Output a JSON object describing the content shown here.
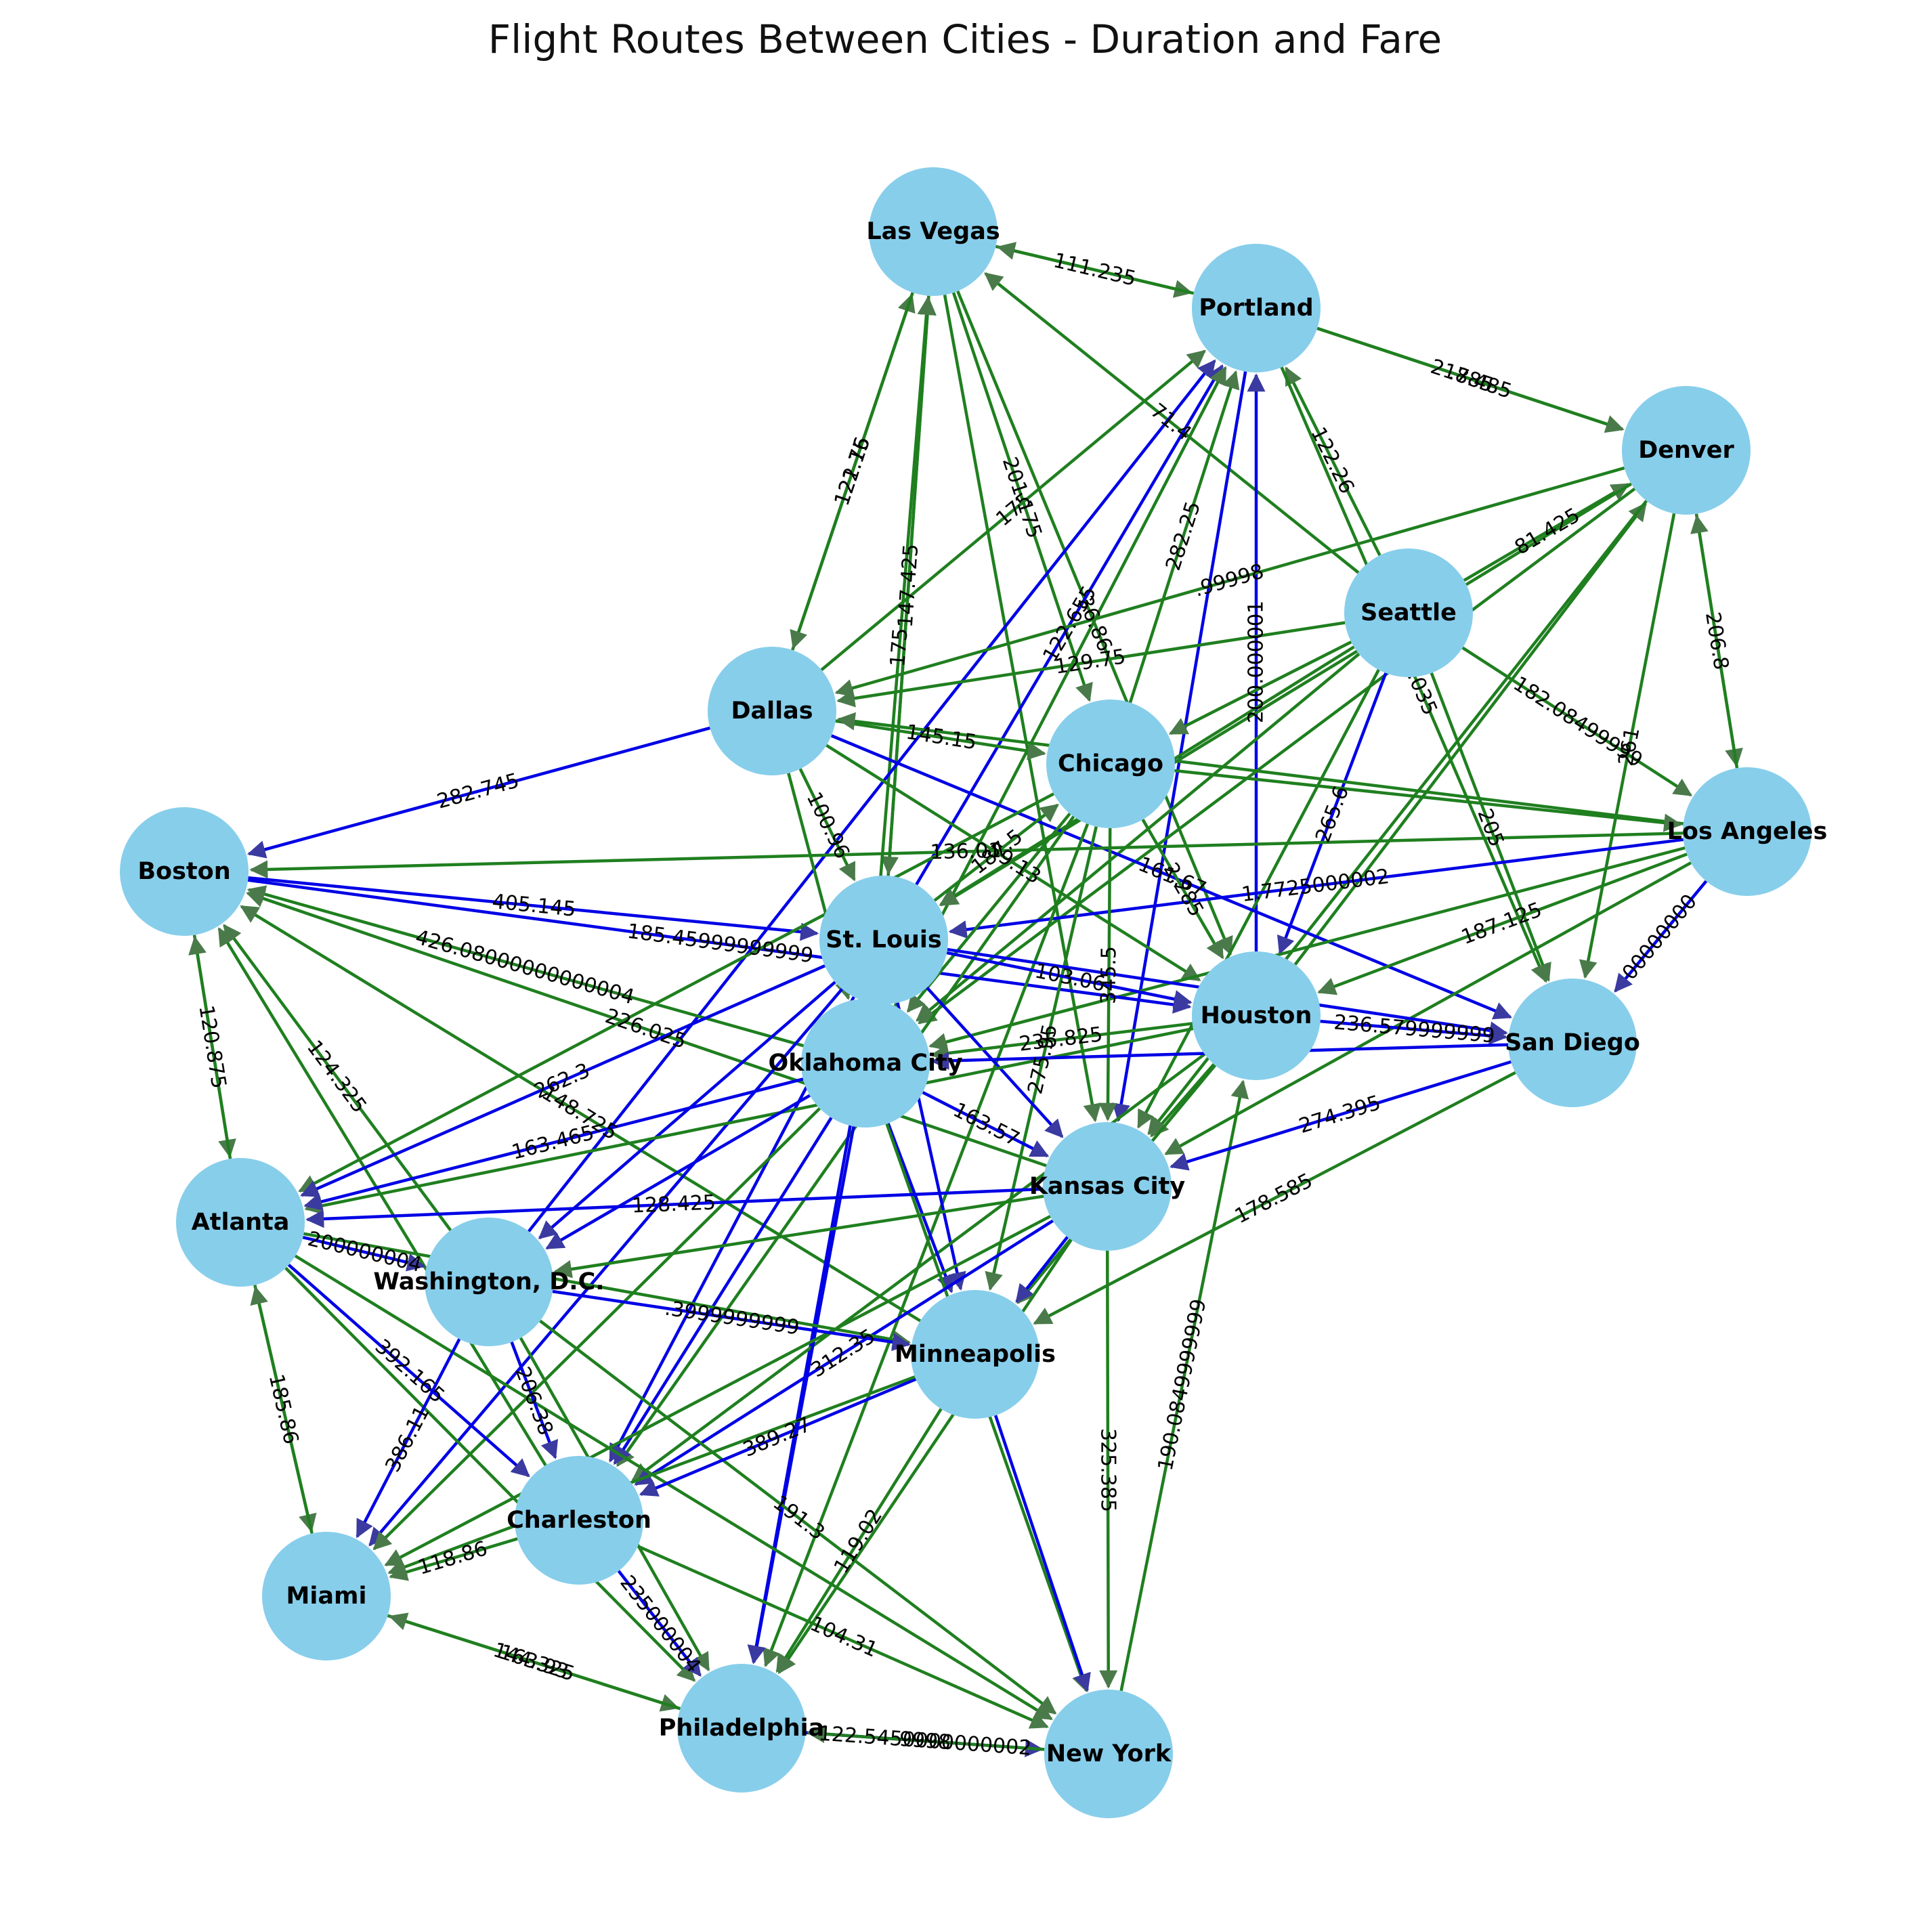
{
  "title": "Flight Routes Between Cities - Duration and Fare",
  "colors": {
    "node_fill": "#87ceeb",
    "edge_green": "#1f7f1f",
    "edge_blue": "#0000e6",
    "background": "#ffffff"
  },
  "nodes": [
    {
      "id": "lv",
      "name": "Las Vegas"
    },
    {
      "id": "por",
      "name": "Portland"
    },
    {
      "id": "den",
      "name": "Denver"
    },
    {
      "id": "sea",
      "name": "Seattle"
    },
    {
      "id": "dal",
      "name": "Dallas"
    },
    {
      "id": "chi",
      "name": "Chicago"
    },
    {
      "id": "la",
      "name": "Los Angeles"
    },
    {
      "id": "bos",
      "name": "Boston"
    },
    {
      "id": "stl",
      "name": "St. Louis"
    },
    {
      "id": "hou",
      "name": "Houston"
    },
    {
      "id": "sd",
      "name": "San Diego"
    },
    {
      "id": "okc",
      "name": "Oklahoma City"
    },
    {
      "id": "kc",
      "name": "Kansas City"
    },
    {
      "id": "atl",
      "name": "Atlanta"
    },
    {
      "id": "dc",
      "name": "Washington, D.C."
    },
    {
      "id": "min",
      "name": "Minneapolis"
    },
    {
      "id": "cha",
      "name": "Charleston"
    },
    {
      "id": "mia",
      "name": "Miami"
    },
    {
      "id": "phi",
      "name": "Philadelphia"
    },
    {
      "id": "ny",
      "name": "New York"
    }
  ],
  "edges": [
    {
      "from": "lv",
      "to": "por",
      "color": "green",
      "label": "111.235"
    },
    {
      "from": "por",
      "to": "lv",
      "color": "green",
      "label": ""
    },
    {
      "from": "por",
      "to": "den",
      "color": "green",
      "label": "218.485"
    },
    {
      "from": "por",
      "to": "den",
      "color": "green",
      "label": ".785"
    },
    {
      "from": "sea",
      "to": "por",
      "color": "green",
      "label": "122.26"
    },
    {
      "from": "sea",
      "to": "lv",
      "color": "green",
      "label": "71.4"
    },
    {
      "from": "den",
      "to": "la",
      "color": "green",
      "label": "206.8"
    },
    {
      "from": "la",
      "to": "den",
      "color": "green",
      "label": ""
    },
    {
      "from": "sea",
      "to": "den",
      "color": "green",
      "label": "81.425"
    },
    {
      "from": "sea",
      "to": "la",
      "color": "green",
      "label": "182.08499999"
    },
    {
      "from": "por",
      "to": "sd",
      "color": "green",
      "label": "168.035"
    },
    {
      "from": "dal",
      "to": "lv",
      "color": "green",
      "label": "121.15"
    },
    {
      "from": "lv",
      "to": "dal",
      "color": "green",
      "label": "122.76"
    },
    {
      "from": "stl",
      "to": "lv",
      "color": "green",
      "label": "147.425"
    },
    {
      "from": "lv",
      "to": "stl",
      "color": "green",
      "label": ""
    },
    {
      "from": "lv",
      "to": "chi",
      "color": "green",
      "label": "201.175"
    },
    {
      "from": "okc",
      "to": "lv",
      "color": "green",
      "label": "175"
    },
    {
      "from": "lv",
      "to": "kc",
      "color": "green",
      "label": ""
    },
    {
      "from": "lv",
      "to": "hou",
      "color": "green",
      "label": "36.86"
    },
    {
      "from": "dal",
      "to": "por",
      "color": "green",
      "label": "175"
    },
    {
      "from": "chi",
      "to": "por",
      "color": "green",
      "label": "282.25"
    },
    {
      "from": "por",
      "to": "kc",
      "color": "blue",
      "label": ""
    },
    {
      "from": "stl",
      "to": "por",
      "color": "blue",
      "label": "122.655"
    },
    {
      "from": "hou",
      "to": "por",
      "color": "blue",
      "label": "200.000001"
    },
    {
      "from": "dc",
      "to": "por",
      "color": "blue",
      "label": ""
    },
    {
      "from": "okc",
      "to": "por",
      "color": "green",
      "label": ""
    },
    {
      "from": "sea",
      "to": "dal",
      "color": "green",
      "label": "129.75"
    },
    {
      "from": "den",
      "to": "dal",
      "color": "green",
      "label": ".99998"
    },
    {
      "from": "sea",
      "to": "chi",
      "color": "green",
      "label": ""
    },
    {
      "from": "den",
      "to": "stl",
      "color": "green",
      "label": ""
    },
    {
      "from": "den",
      "to": "okc",
      "color": "green",
      "label": ""
    },
    {
      "from": "hou",
      "to": "den",
      "color": "green",
      "label": ""
    },
    {
      "from": "den",
      "to": "kc",
      "color": "green",
      "label": ""
    },
    {
      "from": "den",
      "to": "sd",
      "color": "green",
      "label": "261"
    },
    {
      "from": "sea",
      "to": "sd",
      "color": "green",
      "label": "205"
    },
    {
      "from": "sea",
      "to": "hou",
      "color": "blue",
      "label": "265.6"
    },
    {
      "from": "sea",
      "to": "kc",
      "color": "green",
      "label": ""
    },
    {
      "from": "sea",
      "to": "okc",
      "color": "green",
      "label": ""
    },
    {
      "from": "sea",
      "to": "stl",
      "color": "green",
      "label": ""
    },
    {
      "from": "dal",
      "to": "chi",
      "color": "green",
      "label": "145.15"
    },
    {
      "from": "la",
      "to": "dal",
      "color": "green",
      "label": ""
    },
    {
      "from": "dal",
      "to": "sd",
      "color": "blue",
      "label": "161.67"
    },
    {
      "from": "dal",
      "to": "stl",
      "color": "green",
      "label": "100.96"
    },
    {
      "from": "dal",
      "to": "okc",
      "color": "green",
      "label": ""
    },
    {
      "from": "dal",
      "to": "hou",
      "color": "green",
      "label": "59.13"
    },
    {
      "from": "dal",
      "to": "bos",
      "color": "blue",
      "label": "282.745"
    },
    {
      "from": "la",
      "to": "bos",
      "color": "green",
      "label": "136.01"
    },
    {
      "from": "chi",
      "to": "la",
      "color": "green",
      "label": ""
    },
    {
      "from": "la",
      "to": "stl",
      "color": "blue",
      "label": "1.7725000002"
    },
    {
      "from": "la",
      "to": "hou",
      "color": "green",
      "label": "187.125"
    },
    {
      "from": "la",
      "to": "okc",
      "color": "green",
      "label": ""
    },
    {
      "from": "la",
      "to": "kc",
      "color": "green",
      "label": ""
    },
    {
      "from": "la",
      "to": "sd",
      "color": "blue",
      "label": "00000000"
    },
    {
      "from": "bos",
      "to": "stl",
      "color": "blue",
      "label": "405.145"
    },
    {
      "from": "bos",
      "to": "hou",
      "color": "blue",
      "label": "185.45999999999"
    },
    {
      "from": "okc",
      "to": "bos",
      "color": "green",
      "label": "426.08000000000004"
    },
    {
      "from": "kc",
      "to": "bos",
      "color": "green",
      "label": "226.025"
    },
    {
      "from": "bos",
      "to": "atl",
      "color": "green",
      "label": "120.875"
    },
    {
      "from": "atl",
      "to": "bos",
      "color": "green",
      "label": ""
    },
    {
      "from": "dc",
      "to": "bos",
      "color": "green",
      "label": "124.325"
    },
    {
      "from": "cha",
      "to": "bos",
      "color": "green",
      "label": ""
    },
    {
      "from": "min",
      "to": "bos",
      "color": "green",
      "label": "148.725"
    },
    {
      "from": "stl",
      "to": "chi",
      "color": "green",
      "label": "187.5"
    },
    {
      "from": "chi",
      "to": "hou",
      "color": "green",
      "label": "2.285"
    },
    {
      "from": "chi",
      "to": "kc",
      "color": "green",
      "label": "345.5"
    },
    {
      "from": "chi",
      "to": "min",
      "color": "green",
      "label": "275.95"
    },
    {
      "from": "chi",
      "to": "okc",
      "color": "green",
      "label": ""
    },
    {
      "from": "chi",
      "to": "atl",
      "color": "green",
      "label": ""
    },
    {
      "from": "chi",
      "to": "cha",
      "color": "green",
      "label": ""
    },
    {
      "from": "chi",
      "to": "phi",
      "color": "green",
      "label": ""
    },
    {
      "from": "stl",
      "to": "hou",
      "color": "blue",
      "label": "103.06"
    },
    {
      "from": "stl",
      "to": "sd",
      "color": "blue",
      "label": ""
    },
    {
      "from": "stl",
      "to": "kc",
      "color": "blue",
      "label": ""
    },
    {
      "from": "stl",
      "to": "min",
      "color": "blue",
      "label": ""
    },
    {
      "from": "stl",
      "to": "atl",
      "color": "blue",
      "label": "262.3"
    },
    {
      "from": "stl",
      "to": "dc",
      "color": "blue",
      "label": ""
    },
    {
      "from": "stl",
      "to": "cha",
      "color": "blue",
      "label": ""
    },
    {
      "from": "stl",
      "to": "mia",
      "color": "blue",
      "label": ""
    },
    {
      "from": "stl",
      "to": "phi",
      "color": "blue",
      "label": ""
    },
    {
      "from": "hou",
      "to": "sd",
      "color": "blue",
      "label": "236.579999999"
    },
    {
      "from": "hou",
      "to": "okc",
      "color": "green",
      "label": "235.825"
    },
    {
      "from": "hou",
      "to": "kc",
      "color": "green",
      "label": ""
    },
    {
      "from": "hou",
      "to": "min",
      "color": "green",
      "label": ""
    },
    {
      "from": "hou",
      "to": "atl",
      "color": "green",
      "label": ""
    },
    {
      "from": "hou",
      "to": "cha",
      "color": "green",
      "label": ""
    },
    {
      "from": "ny",
      "to": "hou",
      "color": "green",
      "label": "190.0849999999"
    },
    {
      "from": "sd",
      "to": "okc",
      "color": "blue",
      "label": ""
    },
    {
      "from": "sd",
      "to": "kc",
      "color": "blue",
      "label": "274.395"
    },
    {
      "from": "sd",
      "to": "min",
      "color": "green",
      "label": "178.585"
    },
    {
      "from": "okc",
      "to": "kc",
      "color": "blue",
      "label": "163.57"
    },
    {
      "from": "okc",
      "to": "min",
      "color": "blue",
      "label": ""
    },
    {
      "from": "okc",
      "to": "atl",
      "color": "blue",
      "label": "163.465"
    },
    {
      "from": "okc",
      "to": "dc",
      "color": "blue",
      "label": ""
    },
    {
      "from": "okc",
      "to": "cha",
      "color": "blue",
      "label": ""
    },
    {
      "from": "okc",
      "to": "mia",
      "color": "green",
      "label": ""
    },
    {
      "from": "okc",
      "to": "phi",
      "color": "blue",
      "label": ""
    },
    {
      "from": "okc",
      "to": "ny",
      "color": "green",
      "label": ""
    },
    {
      "from": "kc",
      "to": "atl",
      "color": "blue",
      "label": "128.425"
    },
    {
      "from": "kc",
      "to": "dc",
      "color": "green",
      "label": ""
    },
    {
      "from": "kc",
      "to": "min",
      "color": "blue",
      "label": ""
    },
    {
      "from": "kc",
      "to": "cha",
      "color": "blue",
      "label": "312.35"
    },
    {
      "from": "kc",
      "to": "mia",
      "color": "green",
      "label": ""
    },
    {
      "from": "kc",
      "to": "phi",
      "color": "green",
      "label": ""
    },
    {
      "from": "kc",
      "to": "ny",
      "color": "green",
      "label": "325.385"
    },
    {
      "from": "atl",
      "to": "dc",
      "color": "blue",
      "label": "200000004"
    },
    {
      "from": "atl",
      "to": "min",
      "color": "green",
      "label": ""
    },
    {
      "from": "atl",
      "to": "mia",
      "color": "green",
      "label": "185.86"
    },
    {
      "from": "mia",
      "to": "atl",
      "color": "green",
      "label": ""
    },
    {
      "from": "atl",
      "to": "cha",
      "color": "blue",
      "label": "392.165"
    },
    {
      "from": "atl",
      "to": "phi",
      "color": "green",
      "label": ""
    },
    {
      "from": "atl",
      "to": "ny",
      "color": "green",
      "label": ""
    },
    {
      "from": "dc",
      "to": "min",
      "color": "blue",
      "label": ".3999999999"
    },
    {
      "from": "dc",
      "to": "mia",
      "color": "blue",
      "label": "386.11"
    },
    {
      "from": "dc",
      "to": "cha",
      "color": "blue",
      "label": "206.38"
    },
    {
      "from": "dc",
      "to": "phi",
      "color": "green",
      "label": ""
    },
    {
      "from": "dc",
      "to": "ny",
      "color": "green",
      "label": "191.3"
    },
    {
      "from": "min",
      "to": "cha",
      "color": "blue",
      "label": "389.27"
    },
    {
      "from": "min",
      "to": "mia",
      "color": "green",
      "label": ""
    },
    {
      "from": "min",
      "to": "phi",
      "color": "green",
      "label": "119.02"
    },
    {
      "from": "min",
      "to": "ny",
      "color": "blue",
      "label": ""
    },
    {
      "from": "cha",
      "to": "mia",
      "color": "green",
      "label": "118.86"
    },
    {
      "from": "cha",
      "to": "phi",
      "color": "blue",
      "label": "235000004"
    },
    {
      "from": "cha",
      "to": "ny",
      "color": "green",
      "label": "104.31"
    },
    {
      "from": "mia",
      "to": "phi",
      "color": "green",
      "label": "144.325"
    },
    {
      "from": "phi",
      "to": "mia",
      "color": "green",
      "label": "163.93"
    },
    {
      "from": "phi",
      "to": "ny",
      "color": "blue",
      "label": "122.5450000000002"
    },
    {
      "from": "ny",
      "to": "phi",
      "color": "green",
      "label": "9998"
    }
  ]
}
